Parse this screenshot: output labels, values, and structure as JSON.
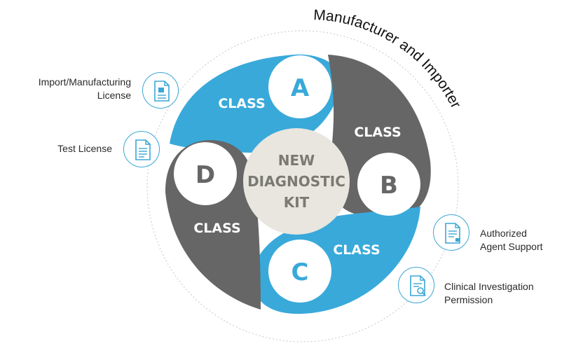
{
  "arc_title": "Manufacturer and Importer",
  "center": {
    "lines": [
      "NEW",
      "DIAGNOSTIC",
      "KIT"
    ]
  },
  "classes": [
    {
      "word": "CLASS",
      "letter": "A"
    },
    {
      "word": "CLASS",
      "letter": "B"
    },
    {
      "word": "CLASS",
      "letter": "C"
    },
    {
      "word": "CLASS",
      "letter": "D"
    }
  ],
  "services": [
    {
      "lines": [
        "Import/Manufacturing",
        "License"
      ],
      "icon": "license-document-icon"
    },
    {
      "lines": [
        "Test License"
      ],
      "icon": "test-document-icon"
    },
    {
      "lines": [
        "Authorized",
        "Agent Support"
      ],
      "icon": "agent-document-icon"
    },
    {
      "lines": [
        "Clinical Investigation",
        "Permission"
      ],
      "icon": "search-document-icon"
    }
  ],
  "colors": {
    "blue": "#39a9da",
    "gray": "#666666",
    "center": "#e8e6df",
    "ring": "#cfcfcf",
    "icon": "#3aa6d6"
  }
}
